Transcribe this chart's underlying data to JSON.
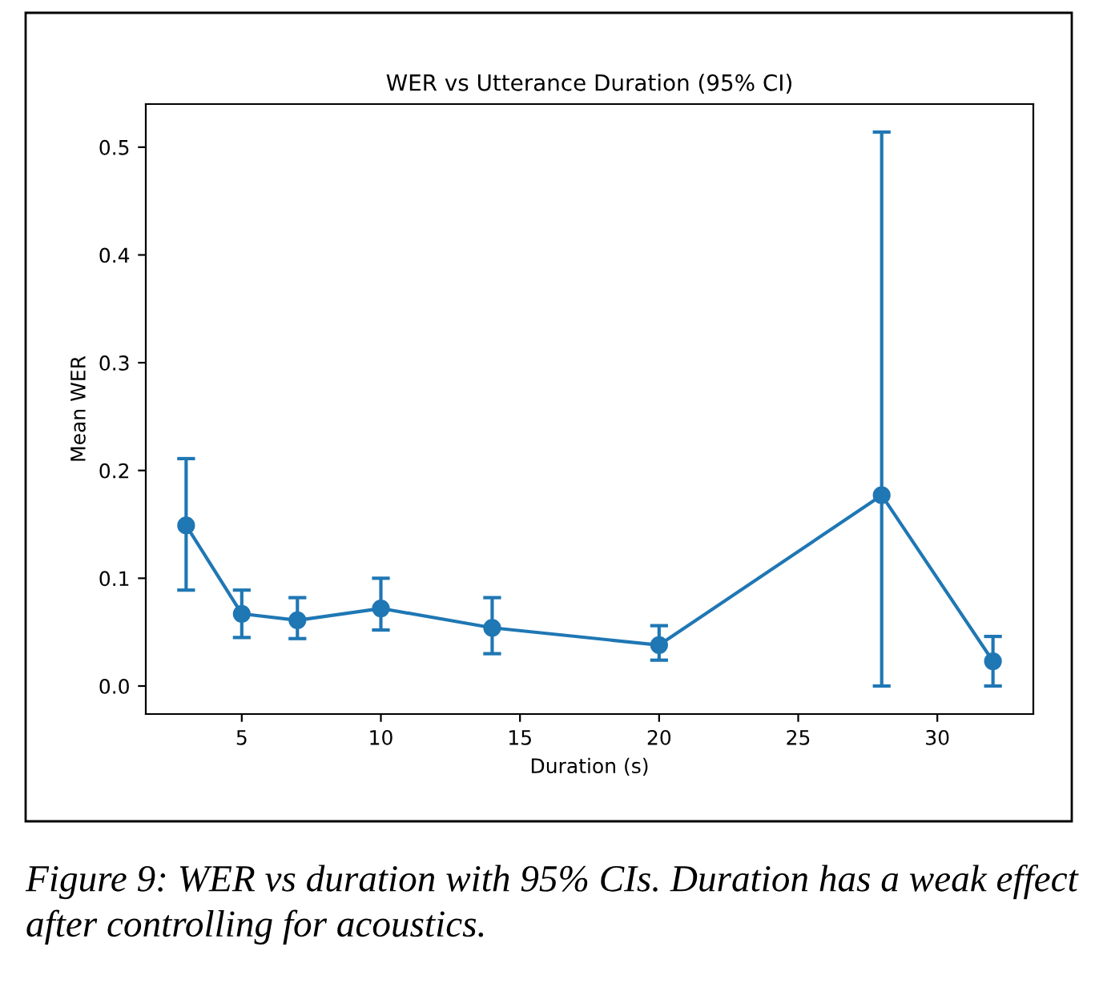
{
  "chart_data": {
    "type": "line",
    "title": "WER vs Utterance Duration (95% CI)",
    "xlabel": "Duration (s)",
    "ylabel": "Mean WER",
    "x": [
      3,
      5,
      7,
      10,
      14,
      20,
      28,
      32
    ],
    "series": [
      {
        "color": "#1f77b4",
        "values": [
          0.149,
          0.067,
          0.061,
          0.072,
          0.054,
          0.038,
          0.177,
          0.023
        ],
        "errors": [
          [
            0.089,
            0.211
          ],
          [
            0.045,
            0.089
          ],
          [
            0.044,
            0.082
          ],
          [
            0.052,
            0.1
          ],
          [
            0.03,
            0.082
          ],
          [
            0.024,
            0.056
          ],
          [
            0.0,
            0.514
          ],
          [
            0.0,
            0.046
          ]
        ]
      }
    ],
    "marker": "circle",
    "line_style": "solid",
    "grid": false,
    "legend": false,
    "xlim": [
      1.55,
      33.45
    ],
    "xticks": [
      5,
      10,
      15,
      20,
      25,
      30
    ],
    "ylim": [
      -0.026,
      0.54
    ],
    "yticks": [
      {
        "value": 0,
        "label": "0.0"
      },
      0.1,
      0.2,
      0.3,
      0.4,
      0.5
    ],
    "annotations": [
      "Figure 9: WER vs duration with 95% CIs. Duration has a weak effect after controlling for acoustics."
    ]
  }
}
